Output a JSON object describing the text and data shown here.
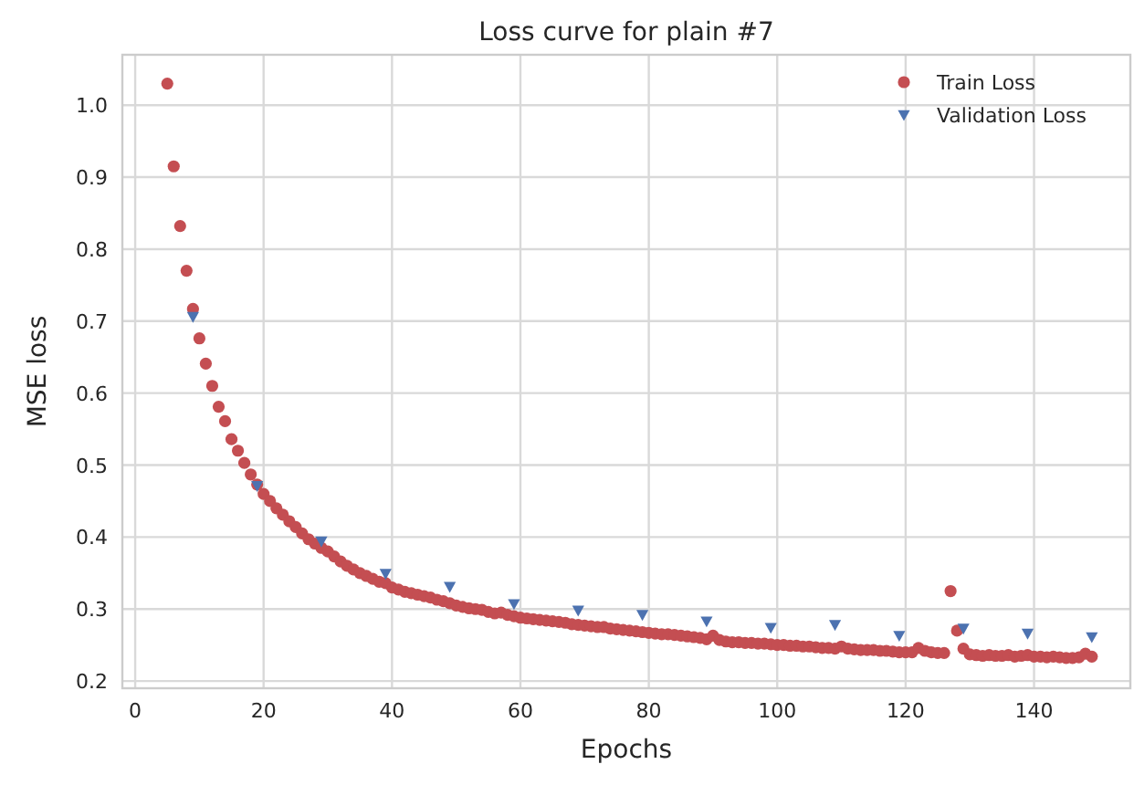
{
  "chart_data": {
    "type": "scatter",
    "title": "Loss curve for plain #7",
    "xlabel": "Epochs",
    "ylabel": "MSE loss",
    "xlim": [
      -2,
      155
    ],
    "ylim": [
      0.19,
      1.07
    ],
    "xticks": [
      0,
      20,
      40,
      60,
      80,
      100,
      120,
      140
    ],
    "yticks": [
      {
        "value": 0.2,
        "label": "0.2"
      },
      {
        "value": 0.3,
        "label": "0.3"
      },
      {
        "value": 0.4,
        "label": "0.4"
      },
      {
        "value": 0.5,
        "label": "0.5"
      },
      {
        "value": 0.6,
        "label": "0.6"
      },
      {
        "value": 0.7,
        "label": "0.7"
      },
      {
        "value": 0.8,
        "label": "0.8"
      },
      {
        "value": 0.9,
        "label": "0.9"
      },
      {
        "value": 1.0,
        "label": "1.0"
      }
    ],
    "grid": true,
    "legend": "top right",
    "series": [
      {
        "name": "Train Loss",
        "color": "#c44e52",
        "marker": "circle",
        "x": [
          5,
          6,
          7,
          8,
          9,
          10,
          11,
          12,
          13,
          14,
          15,
          16,
          17,
          18,
          19,
          20,
          21,
          22,
          23,
          24,
          25,
          26,
          27,
          28,
          29,
          30,
          31,
          32,
          33,
          34,
          35,
          36,
          37,
          38,
          39,
          40,
          41,
          42,
          43,
          44,
          45,
          46,
          47,
          48,
          49,
          50,
          51,
          52,
          53,
          54,
          55,
          56,
          57,
          58,
          59,
          60,
          61,
          62,
          63,
          64,
          65,
          66,
          67,
          68,
          69,
          70,
          71,
          72,
          73,
          74,
          75,
          76,
          77,
          78,
          79,
          80,
          81,
          82,
          83,
          84,
          85,
          86,
          87,
          88,
          89,
          90,
          91,
          92,
          93,
          94,
          95,
          96,
          97,
          98,
          99,
          100,
          101,
          102,
          103,
          104,
          105,
          106,
          107,
          108,
          109,
          110,
          111,
          112,
          113,
          114,
          115,
          116,
          117,
          118,
          119,
          120,
          121,
          122,
          123,
          124,
          125,
          126,
          127,
          128,
          129,
          130,
          131,
          132,
          133,
          134,
          135,
          136,
          137,
          138,
          139,
          140,
          141,
          142,
          143,
          144,
          145,
          146,
          147,
          148,
          149
        ],
        "values": [
          1.03,
          0.915,
          0.832,
          0.77,
          0.717,
          0.676,
          0.641,
          0.61,
          0.581,
          0.561,
          0.536,
          0.52,
          0.503,
          0.487,
          0.473,
          0.46,
          0.45,
          0.44,
          0.431,
          0.422,
          0.414,
          0.405,
          0.397,
          0.391,
          0.385,
          0.38,
          0.373,
          0.366,
          0.36,
          0.355,
          0.35,
          0.346,
          0.342,
          0.338,
          0.336,
          0.33,
          0.327,
          0.324,
          0.322,
          0.32,
          0.318,
          0.316,
          0.313,
          0.311,
          0.308,
          0.305,
          0.303,
          0.301,
          0.3,
          0.299,
          0.296,
          0.294,
          0.295,
          0.292,
          0.29,
          0.288,
          0.287,
          0.286,
          0.285,
          0.284,
          0.283,
          0.282,
          0.281,
          0.279,
          0.278,
          0.277,
          0.276,
          0.275,
          0.275,
          0.273,
          0.272,
          0.271,
          0.27,
          0.269,
          0.268,
          0.267,
          0.266,
          0.265,
          0.265,
          0.264,
          0.263,
          0.262,
          0.261,
          0.26,
          0.258,
          0.263,
          0.257,
          0.255,
          0.254,
          0.254,
          0.253,
          0.253,
          0.252,
          0.252,
          0.251,
          0.25,
          0.25,
          0.249,
          0.249,
          0.248,
          0.248,
          0.247,
          0.246,
          0.246,
          0.245,
          0.248,
          0.245,
          0.244,
          0.243,
          0.243,
          0.243,
          0.242,
          0.242,
          0.241,
          0.24,
          0.24,
          0.24,
          0.246,
          0.242,
          0.24,
          0.239,
          0.239,
          0.325,
          0.27,
          0.245,
          0.237,
          0.236,
          0.235,
          0.236,
          0.235,
          0.235,
          0.236,
          0.234,
          0.235,
          0.236,
          0.234,
          0.234,
          0.233,
          0.234,
          0.233,
          0.232,
          0.232,
          0.233,
          0.238,
          0.234
        ]
      },
      {
        "name": "Validation Loss",
        "color": "#4c72b0",
        "marker": "triangle",
        "x": [
          9,
          19,
          29,
          39,
          49,
          59,
          69,
          79,
          89,
          99,
          109,
          119,
          129,
          139,
          149
        ],
        "values": [
          0.706,
          0.471,
          0.394,
          0.349,
          0.331,
          0.307,
          0.298,
          0.292,
          0.283,
          0.274,
          0.278,
          0.263,
          0.273,
          0.266,
          0.261
        ]
      }
    ]
  }
}
